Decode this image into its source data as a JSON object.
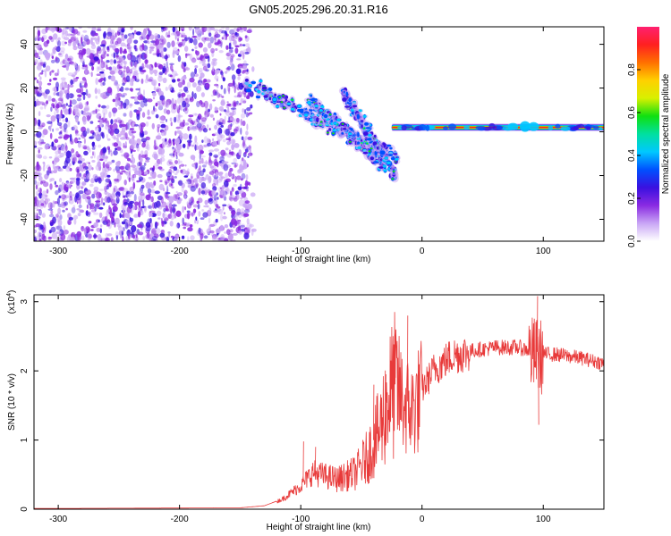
{
  "title": "GN05.2025.296.20.31.R16",
  "colors": {
    "snr_line": "#e83a3a",
    "colormap": [
      "#ffffff",
      "#c9a6f5",
      "#8a2be2",
      "#3a10e0",
      "#0050ff",
      "#00c8ff",
      "#00e0a0",
      "#10e010",
      "#d8f000",
      "#ffd000",
      "#ff7000",
      "#ff2020",
      "#ff2070"
    ]
  },
  "chart_data": [
    {
      "type": "heatmap",
      "name": "spectrogram",
      "xlabel": "Height of straight line (km)",
      "ylabel": "Frequency (Hz)",
      "xlim": [
        -320,
        150
      ],
      "ylim": [
        -50,
        48
      ],
      "xticks": [
        -300,
        -200,
        -100,
        0,
        100
      ],
      "xtick_labels": [
        "-300",
        "-200",
        "-100",
        "0",
        "100"
      ],
      "yticks": [
        -40,
        -20,
        0,
        20,
        40
      ],
      "ytick_labels": [
        "-40",
        "-20",
        "0",
        "20",
        "40"
      ],
      "colorbar": {
        "label": "Normalized spectral amplitude",
        "range": [
          0,
          1
        ],
        "ticks": [
          0,
          0.2,
          0.4,
          0.6,
          0.8
        ],
        "tick_labels": [
          "0.0",
          "0.2",
          "0.4",
          "0.6",
          "0.8"
        ]
      },
      "features": {
        "noise_region_x": [
          -320,
          -145
        ],
        "chirp_segments": [
          {
            "x": [
              -145,
              -20
            ],
            "freq": [
              22,
              -12
            ]
          },
          {
            "x": [
              -95,
              -30
            ],
            "freq": [
              16,
              -16
            ]
          },
          {
            "x": [
              -65,
              -22
            ],
            "freq": [
              18,
              -20
            ]
          }
        ],
        "tone_line": {
          "x": [
            -25,
            150
          ],
          "freq": 2
        }
      }
    },
    {
      "type": "line",
      "name": "snr",
      "xlabel": "Height of straight line (km)",
      "ylabel": "SNR (10 * v/v)",
      "multiplier": "(x10",
      "multiplier_exp": "4",
      "multiplier_close": ")",
      "xlim": [
        -320,
        150
      ],
      "ylim": [
        0,
        3.1
      ],
      "xticks": [
        -300,
        -200,
        -100,
        0,
        100
      ],
      "xtick_labels": [
        "-300",
        "-200",
        "-100",
        "0",
        "100"
      ],
      "yticks": [
        0,
        1,
        2,
        3
      ],
      "ytick_labels": [
        "0",
        "1",
        "2",
        "3"
      ],
      "envelope": {
        "x": [
          -320,
          -150,
          -130,
          -115,
          -100,
          -90,
          -80,
          -70,
          -55,
          -45,
          -35,
          -28,
          -22,
          -15,
          -8,
          0,
          10,
          25,
          40,
          60,
          80,
          90,
          100,
          110,
          130,
          150
        ],
        "y": [
          0.01,
          0.02,
          0.05,
          0.15,
          0.35,
          0.55,
          0.5,
          0.45,
          0.55,
          0.8,
          1.2,
          1.7,
          1.9,
          1.6,
          1.5,
          1.75,
          2.05,
          2.25,
          2.3,
          2.35,
          2.35,
          2.3,
          2.25,
          2.25,
          2.2,
          2.12
        ]
      },
      "spikes": [
        {
          "x": -98,
          "y": 0.98
        },
        {
          "x": -88,
          "y": 0.9
        },
        {
          "x": -40,
          "y": 1.8
        },
        {
          "x": -30,
          "y": 1.95
        },
        {
          "x": -22,
          "y": 2.6
        },
        {
          "x": -12,
          "y": 2.8
        },
        {
          "x": 95,
          "y": 3.08
        },
        {
          "x": 96,
          "y": 1.22
        }
      ]
    }
  ]
}
